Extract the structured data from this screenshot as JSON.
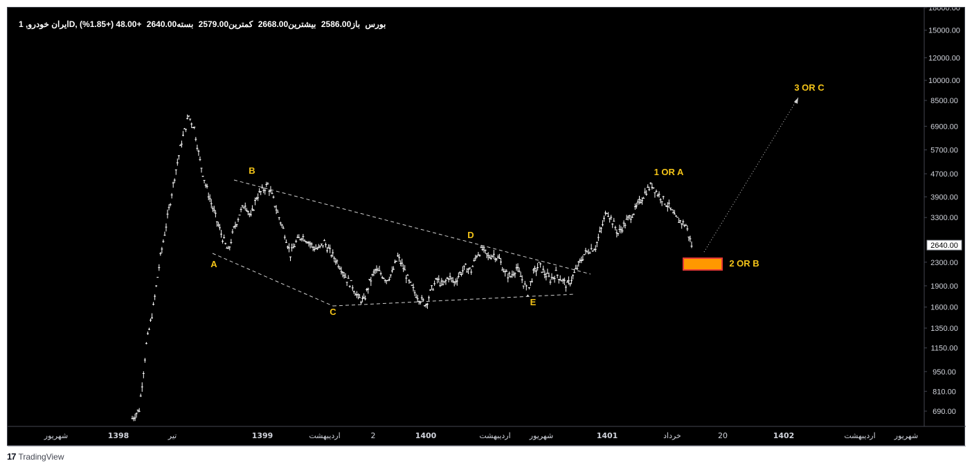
{
  "header": {
    "symbol": "ایران خودرو, 1D, بورس",
    "open": "باز2586.00",
    "high": "بیشترین2668.00",
    "low": "کمترین2579.00",
    "close": "بسته2640.00",
    "change": "+48.00 (+1.85%)"
  },
  "footer": {
    "logo": "17",
    "brand": "TradingView"
  },
  "colors": {
    "background": "#000000",
    "candles": "#ffffff",
    "annotation": "#f5c518",
    "target_box": "#ff9800",
    "target_border": "#e53935",
    "trendline": "#d0d0d0"
  },
  "chart_data": {
    "type": "candlestick",
    "scale": "log",
    "ylim": [
      610,
      18000
    ],
    "price_axis_labels": [
      "18000.00",
      "15000.00",
      "12000.00",
      "10000.00",
      "8500.00",
      "6900.00",
      "5700.00",
      "4700.00",
      "3900.00",
      "3300.00",
      "2640.00",
      "2300.00",
      "1900.00",
      "1600.00",
      "1350.00",
      "1150.00",
      "950.00",
      "810.00",
      "690.00"
    ],
    "current_price": "2640.00",
    "time_axis_labels": [
      "شهریور",
      "1398",
      "تیر",
      "1399",
      "اردیبهشت",
      "2",
      "1400",
      "اردیبهشت",
      "شهریور",
      "1401",
      "خرداد",
      "20",
      "1402",
      "اردیبهشت",
      "شهریور"
    ],
    "price_path": [
      [
        0,
        650
      ],
      [
        5,
        700
      ],
      [
        10,
        1180
      ],
      [
        15,
        1600
      ],
      [
        20,
        2400
      ],
      [
        25,
        3300
      ],
      [
        30,
        4600
      ],
      [
        35,
        6100
      ],
      [
        40,
        7500
      ],
      [
        44,
        6800
      ],
      [
        48,
        5200
      ],
      [
        52,
        4300
      ],
      [
        56,
        3700
      ],
      [
        60,
        3200
      ],
      [
        64,
        2800
      ],
      [
        68,
        2500
      ],
      [
        72,
        3000
      ],
      [
        76,
        3400
      ],
      [
        80,
        3700
      ],
      [
        84,
        3300
      ],
      [
        88,
        3900
      ],
      [
        92,
        4100
      ],
      [
        96,
        4300
      ],
      [
        100,
        3800
      ],
      [
        104,
        3300
      ],
      [
        108,
        2900
      ],
      [
        112,
        2450
      ],
      [
        116,
        2700
      ],
      [
        120,
        2850
      ],
      [
        124,
        2750
      ],
      [
        128,
        2600
      ],
      [
        132,
        2550
      ],
      [
        136,
        2700
      ],
      [
        140,
        2500
      ],
      [
        144,
        2350
      ],
      [
        148,
        2200
      ],
      [
        152,
        2000
      ],
      [
        156,
        1900
      ],
      [
        160,
        1720
      ],
      [
        164,
        1680
      ],
      [
        168,
        1950
      ],
      [
        172,
        2150
      ],
      [
        176,
        2100
      ],
      [
        180,
        2000
      ],
      [
        184,
        2100
      ],
      [
        188,
        2400
      ],
      [
        192,
        2200
      ],
      [
        196,
        1950
      ],
      [
        200,
        1800
      ],
      [
        204,
        1700
      ],
      [
        208,
        1640
      ],
      [
        212,
        1850
      ],
      [
        216,
        2000
      ],
      [
        220,
        1900
      ],
      [
        224,
        2050
      ],
      [
        228,
        1950
      ],
      [
        232,
        2100
      ],
      [
        236,
        2200
      ],
      [
        240,
        2150
      ],
      [
        244,
        2450
      ],
      [
        248,
        2550
      ],
      [
        252,
        2400
      ],
      [
        256,
        2450
      ],
      [
        260,
        2350
      ],
      [
        264,
        2100
      ],
      [
        268,
        2050
      ],
      [
        272,
        2200
      ],
      [
        276,
        2000
      ],
      [
        280,
        1800
      ],
      [
        284,
        2100
      ],
      [
        288,
        2250
      ],
      [
        292,
        2100
      ],
      [
        296,
        2000
      ],
      [
        300,
        2100
      ],
      [
        304,
        2000
      ],
      [
        308,
        1900
      ],
      [
        312,
        2050
      ],
      [
        316,
        2250
      ],
      [
        320,
        2450
      ],
      [
        324,
        2550
      ],
      [
        328,
        2600
      ],
      [
        332,
        3000
      ],
      [
        336,
        3500
      ],
      [
        340,
        3200
      ],
      [
        344,
        2900
      ],
      [
        348,
        3100
      ],
      [
        352,
        3300
      ],
      [
        356,
        3500
      ],
      [
        360,
        3800
      ],
      [
        364,
        4100
      ],
      [
        368,
        4300
      ],
      [
        372,
        4000
      ],
      [
        376,
        3800
      ],
      [
        380,
        3600
      ],
      [
        384,
        3300
      ],
      [
        388,
        3200
      ],
      [
        392,
        3100
      ],
      [
        396,
        2640
      ]
    ],
    "annotations": [
      {
        "label": "A"
      },
      {
        "label": "B"
      },
      {
        "label": "C"
      },
      {
        "label": "D"
      },
      {
        "label": "E"
      },
      {
        "label": "1 OR A"
      },
      {
        "label": "2 OR B"
      },
      {
        "label": "3 OR C"
      }
    ]
  }
}
